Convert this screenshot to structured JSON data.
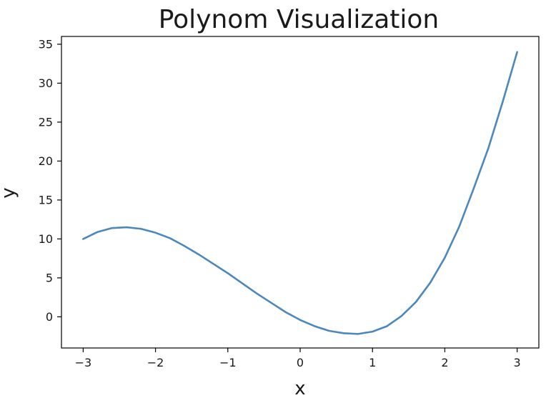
{
  "chart_data": {
    "type": "line",
    "title": "Polynom Visualization",
    "xlabel": "x",
    "ylabel": "y",
    "xlim": [
      -3.3,
      3.3
    ],
    "ylim": [
      -4,
      36
    ],
    "xticks": [
      -3,
      -2,
      -1,
      0,
      1,
      2,
      3
    ],
    "yticks": [
      0,
      5,
      10,
      15,
      20,
      25,
      30,
      35
    ],
    "xtick_labels": [
      "−3",
      "−2",
      "−1",
      "0",
      "1",
      "2",
      "3"
    ],
    "ytick_labels": [
      "0",
      "5",
      "10",
      "15",
      "20",
      "25",
      "30",
      "35"
    ],
    "grid": false,
    "legend": "none",
    "line_color": "#4c87bd",
    "series": [
      {
        "x": [
          -3.0,
          -2.8,
          -2.6,
          -2.4,
          -2.2,
          -2.0,
          -1.8,
          -1.6,
          -1.4,
          -1.2,
          -1.0,
          -0.8,
          -0.6,
          -0.4,
          -0.2,
          0.0,
          0.2,
          0.4,
          0.6,
          0.8,
          1.0,
          1.2,
          1.4,
          1.6,
          1.8,
          2.0,
          2.2,
          2.4,
          2.6,
          2.8,
          3.0
        ],
        "y": [
          10.0,
          10.9,
          11.4,
          11.5,
          11.3,
          10.8,
          10.1,
          9.1,
          8.0,
          6.8,
          5.6,
          4.3,
          3.0,
          1.8,
          0.6,
          -0.4,
          -1.2,
          -1.8,
          -2.1,
          -2.2,
          -1.9,
          -1.2,
          0.1,
          1.9,
          4.4,
          7.6,
          11.6,
          16.5,
          21.6,
          27.6,
          34.0
        ]
      }
    ]
  }
}
